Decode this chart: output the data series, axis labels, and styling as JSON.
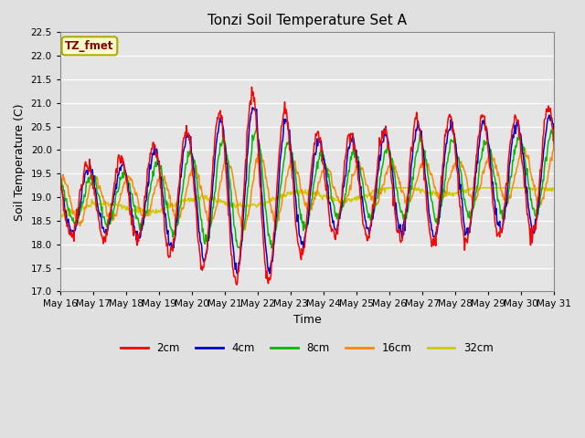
{
  "title": "Tonzi Soil Temperature Set A",
  "xlabel": "Time",
  "ylabel": "Soil Temperature (C)",
  "annotation": "TZ_fmet",
  "ylim": [
    17.0,
    22.5
  ],
  "background_color": "#e5e5e5",
  "grid_color": "#ffffff",
  "legend_entries": [
    "2cm",
    "4cm",
    "8cm",
    "16cm",
    "32cm"
  ],
  "legend_colors": [
    "#ff0000",
    "#0000cc",
    "#00bb00",
    "#ff8800",
    "#cccc00"
  ],
  "x_tick_labels": [
    "May 16",
    "May 17",
    "May 18",
    "May 19",
    "May 20",
    "May 21",
    "May 22",
    "May 23",
    "May 24",
    "May 25",
    "May 26",
    "May 27",
    "May 28",
    "May 29",
    "May 30",
    "May 31"
  ],
  "yticks": [
    17.0,
    17.5,
    18.0,
    18.5,
    19.0,
    19.5,
    20.0,
    20.5,
    21.0,
    21.5,
    22.0,
    22.5
  ]
}
